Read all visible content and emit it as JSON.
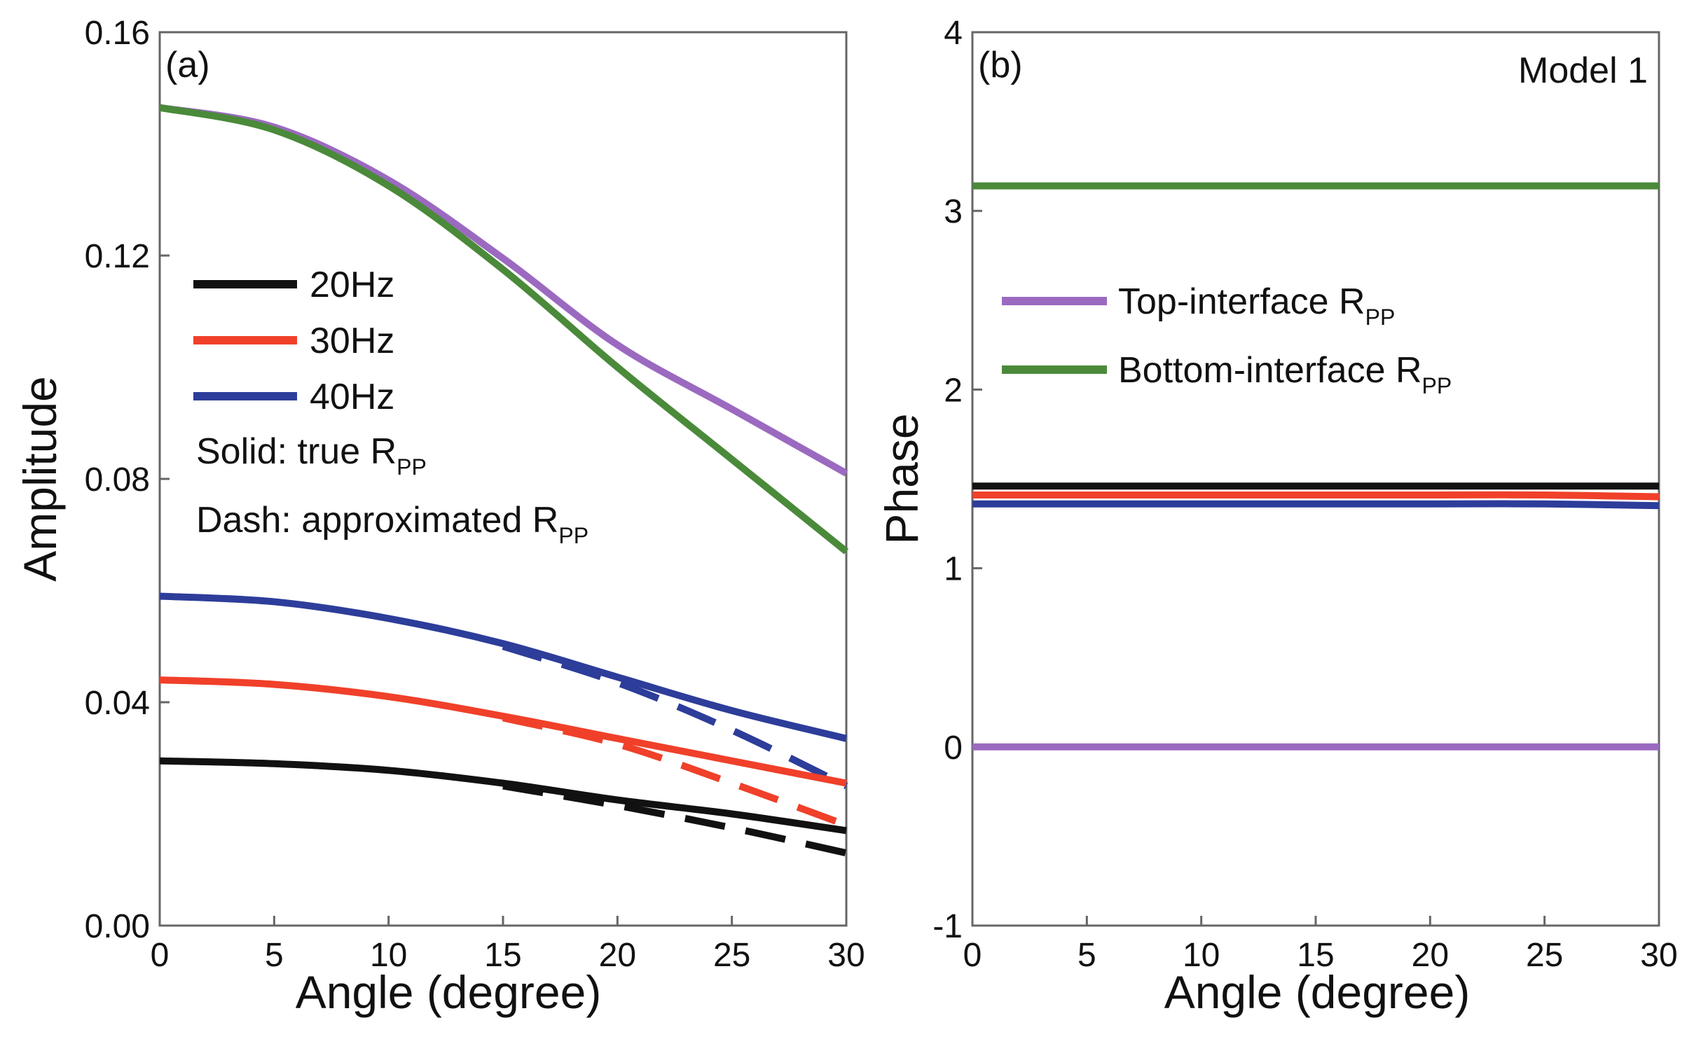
{
  "chart_data": [
    {
      "type": "line",
      "panel_label": "(a)",
      "xlabel": "Angle (degree)",
      "ylabel": "Amplitude",
      "xlim": [
        0,
        30
      ],
      "ylim": [
        0,
        0.16
      ],
      "x_ticks": [
        "0",
        "5",
        "10",
        "15",
        "20",
        "25",
        "30"
      ],
      "y_ticks": [
        "0.00",
        "0.04",
        "0.08",
        "0.12",
        "0.16"
      ],
      "legend": {
        "entries": [
          {
            "label": "20Hz",
            "color": "#111111"
          },
          {
            "label": "30Hz",
            "color": "#f0402a"
          },
          {
            "label": "40Hz",
            "color": "#2d3d9a"
          }
        ],
        "note_solid_prefix": "Solid: true R",
        "note_dash_prefix": "Dash: approximated  R",
        "subscript": "PP"
      },
      "x": [
        0,
        5,
        10,
        15,
        20,
        25,
        30
      ],
      "series": [
        {
          "name": "Top-interface true",
          "color": "#9b6ac0",
          "style": "solid",
          "values": [
            0.1465,
            0.143,
            0.1335,
            0.1195,
            0.104,
            0.0925,
            0.081
          ]
        },
        {
          "name": "Bottom-interface true",
          "color": "#4a8a3a",
          "style": "solid",
          "values": [
            0.1465,
            0.1425,
            0.1325,
            0.1175,
            0.1,
            0.0835,
            0.067
          ]
        },
        {
          "name": "40Hz true",
          "color": "#2d3d9a",
          "style": "solid",
          "values": [
            0.059,
            0.058,
            0.055,
            0.0505,
            0.0445,
            0.0385,
            0.0335
          ]
        },
        {
          "name": "40Hz approx",
          "color": "#2d3d9a",
          "style": "dash",
          "values": [
            0.059,
            0.058,
            0.055,
            0.05,
            0.0435,
            0.035,
            0.025
          ]
        },
        {
          "name": "30Hz true",
          "color": "#f0402a",
          "style": "solid",
          "values": [
            0.044,
            0.0432,
            0.041,
            0.0375,
            0.0335,
            0.0295,
            0.0255
          ]
        },
        {
          "name": "30Hz approx",
          "color": "#f0402a",
          "style": "dash",
          "values": [
            0.044,
            0.0432,
            0.041,
            0.0372,
            0.0325,
            0.0255,
            0.018
          ]
        },
        {
          "name": "20Hz true",
          "color": "#111111",
          "style": "solid",
          "values": [
            0.0295,
            0.029,
            0.0278,
            0.0255,
            0.0225,
            0.02,
            0.017
          ]
        },
        {
          "name": "20Hz approx",
          "color": "#111111",
          "style": "dash",
          "values": [
            0.0295,
            0.029,
            0.0278,
            0.025,
            0.0215,
            0.0175,
            0.013
          ]
        }
      ]
    },
    {
      "type": "line",
      "panel_label": "(b)",
      "annotation": "Model 1",
      "xlabel": "Angle (degree)",
      "ylabel": "Phase",
      "xlim": [
        0,
        30
      ],
      "ylim": [
        -1,
        4
      ],
      "x_ticks": [
        "0",
        "5",
        "10",
        "15",
        "20",
        "25",
        "30"
      ],
      "y_ticks": [
        "-1",
        "0",
        "1",
        "2",
        "3",
        "4"
      ],
      "legend": {
        "entries": [
          {
            "label": "Top-interface R",
            "color": "#9b6ac0"
          },
          {
            "label": "Bottom-interface R",
            "color": "#4a8a3a"
          }
        ],
        "subscript": "PP"
      },
      "x": [
        0,
        5,
        10,
        15,
        20,
        25,
        30
      ],
      "series": [
        {
          "name": "Bottom-interface R_PP",
          "color": "#4a8a3a",
          "style": "solid",
          "values": [
            3.14,
            3.14,
            3.14,
            3.14,
            3.14,
            3.14,
            3.14
          ]
        },
        {
          "name": "Top-interface R_PP",
          "color": "#9b6ac0",
          "style": "solid",
          "values": [
            0,
            0,
            0,
            0,
            0,
            0,
            0
          ]
        },
        {
          "name": "20Hz",
          "color": "#111111",
          "style": "solid",
          "values": [
            1.46,
            1.46,
            1.46,
            1.46,
            1.46,
            1.46,
            1.46
          ]
        },
        {
          "name": "30Hz",
          "color": "#f0402a",
          "style": "solid",
          "values": [
            1.41,
            1.41,
            1.41,
            1.41,
            1.41,
            1.41,
            1.4
          ]
        },
        {
          "name": "40Hz",
          "color": "#2d3d9a",
          "style": "solid",
          "values": [
            1.36,
            1.36,
            1.36,
            1.36,
            1.36,
            1.36,
            1.35
          ]
        }
      ]
    }
  ]
}
